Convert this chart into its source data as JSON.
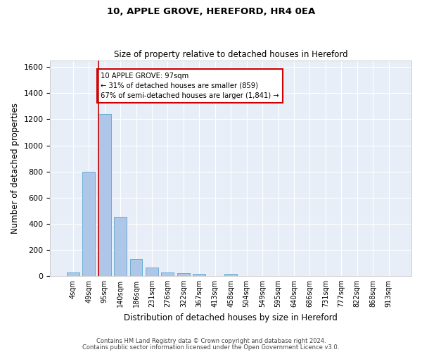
{
  "title1": "10, APPLE GROVE, HEREFORD, HR4 0EA",
  "title2": "Size of property relative to detached houses in Hereford",
  "xlabel": "Distribution of detached houses by size in Hereford",
  "ylabel": "Number of detached properties",
  "bar_color": "#aec6e8",
  "bar_edge_color": "#6aaed6",
  "background_color": "#e8eef8",
  "grid_color": "#ffffff",
  "vline_color": "#cc0000",
  "vline_index": 2,
  "annotation_line1": "10 APPLE GROVE: 97sqm",
  "annotation_line2": "← 31% of detached houses are smaller (859)",
  "annotation_line3": "67% of semi-detached houses are larger (1,841) →",
  "annotation_box_color": "#ffffff",
  "annotation_box_edge": "#cc0000",
  "categories": [
    "4sqm",
    "49sqm",
    "95sqm",
    "140sqm",
    "186sqm",
    "231sqm",
    "276sqm",
    "322sqm",
    "367sqm",
    "413sqm",
    "458sqm",
    "504sqm",
    "549sqm",
    "595sqm",
    "640sqm",
    "686sqm",
    "731sqm",
    "777sqm",
    "822sqm",
    "868sqm",
    "913sqm"
  ],
  "values": [
    25,
    800,
    1240,
    450,
    130,
    65,
    28,
    20,
    14,
    0,
    14,
    0,
    0,
    0,
    0,
    0,
    0,
    0,
    0,
    0,
    0
  ],
  "ylim": [
    0,
    1650
  ],
  "yticks": [
    0,
    200,
    400,
    600,
    800,
    1000,
    1200,
    1400,
    1600
  ],
  "footer1": "Contains HM Land Registry data © Crown copyright and database right 2024.",
  "footer2": "Contains public sector information licensed under the Open Government Licence v3.0.",
  "fig_width": 6.0,
  "fig_height": 5.0,
  "dpi": 100
}
